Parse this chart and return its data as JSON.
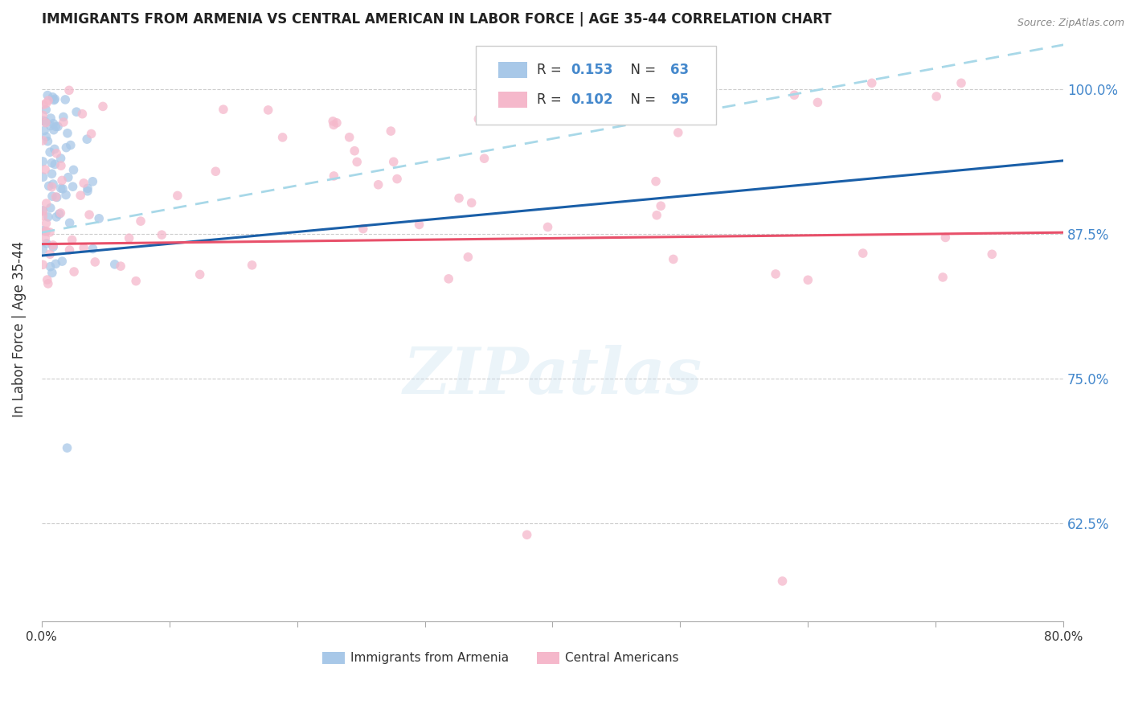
{
  "title": "IMMIGRANTS FROM ARMENIA VS CENTRAL AMERICAN IN LABOR FORCE | AGE 35-44 CORRELATION CHART",
  "source": "Source: ZipAtlas.com",
  "ylabel": "In Labor Force | Age 35-44",
  "xlim": [
    0.0,
    0.8
  ],
  "ylim": [
    0.54,
    1.045
  ],
  "yticks": [
    0.625,
    0.75,
    0.875,
    1.0
  ],
  "ytick_labels": [
    "62.5%",
    "75.0%",
    "87.5%",
    "100.0%"
  ],
  "xticks": [
    0.0,
    0.1,
    0.2,
    0.3,
    0.4,
    0.5,
    0.6,
    0.7,
    0.8
  ],
  "xtick_labels": [
    "0.0%",
    "",
    "",
    "",
    "",
    "",
    "",
    "",
    "80.0%"
  ],
  "watermark": "ZIPatlas",
  "blue_color": "#a8c8e8",
  "pink_color": "#f5b8cb",
  "trendline_blue_color": "#1a5fa8",
  "trendline_pink_color": "#e8506a",
  "trendline_dashed_color": "#a8d8e8",
  "right_axis_color": "#4488cc",
  "legend_blue": "#a8c8e8",
  "legend_pink": "#f5b8cb",
  "blue_trendline_x": [
    0.0,
    0.8
  ],
  "blue_trendline_y": [
    0.856,
    0.938
  ],
  "dashed_trendline_x": [
    0.0,
    0.8
  ],
  "dashed_trendline_y": [
    0.876,
    1.038
  ],
  "pink_trendline_x": [
    0.0,
    0.8
  ],
  "pink_trendline_y": [
    0.866,
    0.876
  ]
}
